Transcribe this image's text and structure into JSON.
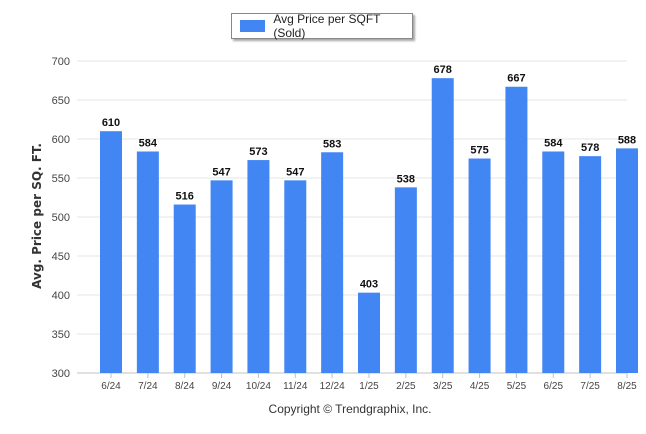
{
  "chart_data": {
    "type": "bar",
    "categories": [
      "6/24",
      "7/24",
      "8/24",
      "9/24",
      "10/24",
      "11/24",
      "12/24",
      "1/25",
      "2/25",
      "3/25",
      "4/25",
      "5/25",
      "6/25",
      "7/25",
      "8/25"
    ],
    "series": [
      {
        "name": "Avg Price per SQFT (Sold)",
        "values": [
          610,
          584,
          516,
          547,
          573,
          547,
          583,
          403,
          538,
          678,
          575,
          667,
          584,
          578,
          588
        ],
        "color": "#4286f4"
      }
    ],
    "ylabel": "Avg. Price per SQ. FT.",
    "xlabel": "",
    "ylim": [
      300,
      700
    ],
    "yticks": [
      300,
      350,
      400,
      450,
      500,
      550,
      600,
      650,
      700
    ],
    "grid": true,
    "legend": "top-center",
    "data_labels": true
  },
  "legend": {
    "label": "Avg Price per SQFT (Sold)"
  },
  "footer": {
    "copyright": "Copyright © Trendgraphix, Inc."
  }
}
